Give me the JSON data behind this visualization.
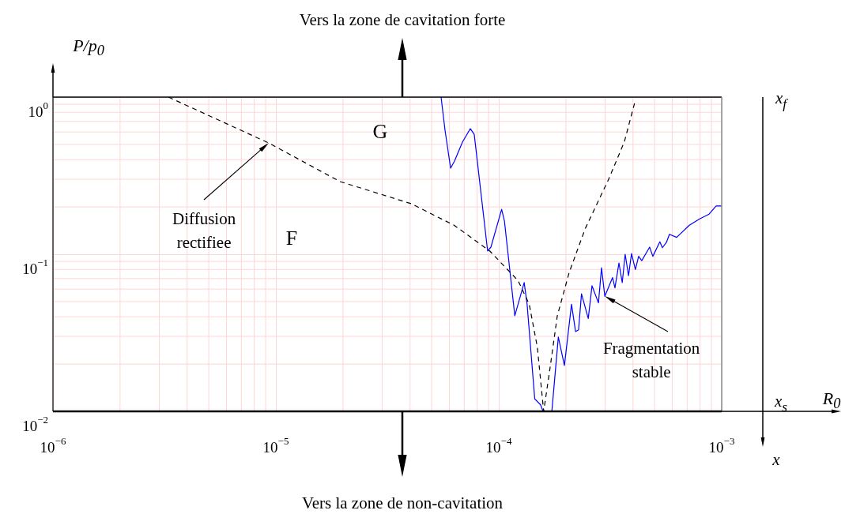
{
  "chart_data": {
    "type": "line",
    "ylabel": "P/p$_{0}$",
    "log": "xy",
    "grid": true,
    "legend": false,
    "marker": "none",
    "xlim": [
      1e-06,
      0.001
    ],
    "xticks": [
      {
        "value": 1e-06,
        "label": "10$^{−6}$"
      },
      {
        "value": 1e-05,
        "label": "10$^{−5}$"
      },
      {
        "value": 0.0001,
        "label": "10$^{−4}$"
      },
      {
        "value": 0.001,
        "label": "10$^{−3}$"
      }
    ],
    "ylim": [
      0.01,
      1
    ],
    "yticks": [
      {
        "value": 0.01,
        "label": "10$^{−2}$"
      },
      {
        "value": 0.1,
        "label": "10$^{−1}$"
      },
      {
        "value": 1,
        "label": "10$^{0}$"
      }
    ],
    "series": [
      {
        "color": "#000000",
        "line_style": "dashed",
        "x": [
          3.3e-06,
          9.3e-06,
          1.94e-05,
          4.04e-05,
          6.3e-05,
          9.1e-05,
          0.000122,
          0.000137,
          0.000149,
          0.000159,
          0.000169,
          0.000183,
          0.000207,
          0.000244,
          0.000311,
          0.000366,
          0.000407
        ],
        "values": [
          1.0,
          0.51,
          0.29,
          0.21,
          0.153,
          0.105,
          0.068,
          0.048,
          0.0255,
          0.01,
          0.018,
          0.0405,
          0.0766,
          0.145,
          0.3,
          0.52,
          0.92
        ]
      },
      {
        "color": "#0000ff",
        "line_style": "solid",
        "x": [
          5.51e-05,
          5.74e-05,
          6.08e-05,
          6.33e-05,
          6.87e-05,
          7.45e-05,
          7.76e-05,
          8.91e-05,
          9.22e-05,
          0.000103,
          0.000106,
          0.000118,
          0.00013,
          0.000134,
          0.000145,
          0.000154,
          0.000158,
          0.000173,
          0.000185,
          0.000197,
          0.000212,
          0.000221,
          0.000228,
          0.000235,
          0.000252,
          0.000262,
          0.00028,
          0.000289,
          0.000299,
          0.000324,
          0.000332,
          0.000346,
          0.000358,
          0.000369,
          0.000382,
          0.000394,
          0.00041,
          0.000424,
          0.000438,
          0.000475,
          0.000491,
          0.000528,
          0.000542,
          0.000565,
          0.000583,
          0.000628,
          0.000716,
          0.000796,
          0.000878,
          0.000944,
          0.001
        ],
        "values": [
          1.0,
          0.615,
          0.353,
          0.392,
          0.517,
          0.63,
          0.58,
          0.105,
          0.111,
          0.193,
          0.163,
          0.0406,
          0.066,
          0.048,
          0.012,
          0.011,
          0.01,
          0.01,
          0.0297,
          0.0196,
          0.048,
          0.0322,
          0.033,
          0.056,
          0.039,
          0.063,
          0.049,
          0.082,
          0.054,
          0.071,
          0.061,
          0.088,
          0.066,
          0.1,
          0.073,
          0.101,
          0.08,
          0.097,
          0.091,
          0.111,
          0.097,
          0.12,
          0.11,
          0.119,
          0.134,
          0.128,
          0.153,
          0.168,
          0.18,
          0.203,
          0.203
        ]
      }
    ],
    "annotations": [
      "Vers la zone de cavitation forte",
      "Vers la zone de non-cavitation",
      "x$_{f}$",
      "x$_{s}$",
      "x",
      "G",
      "F",
      {
        "text": "Diffusion rectifiee",
        "x": 9.3e-06,
        "y": 0.51
      },
      {
        "text": "Fragmentation stable",
        "x": 0.000299,
        "y": 0.054
      },
      "R$_{0}$"
    ]
  }
}
